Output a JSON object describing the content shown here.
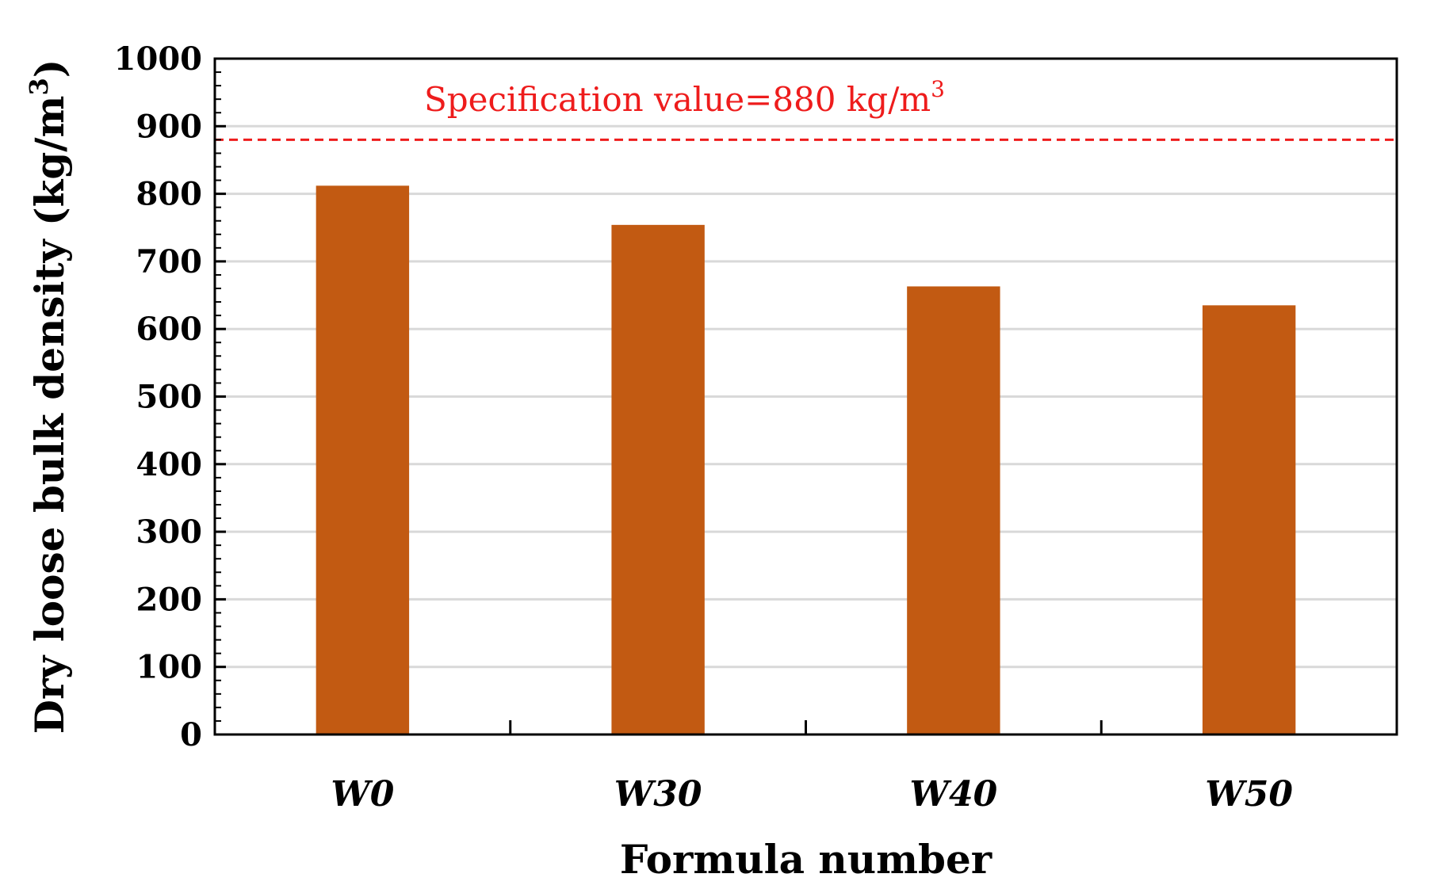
{
  "chart_data": {
    "type": "bar",
    "categories": [
      "W0",
      "W30",
      "W40",
      "W50"
    ],
    "series": [
      {
        "values": [
          812,
          754,
          663,
          635
        ]
      }
    ],
    "xlabel": "Formula number",
    "ylabel": {
      "main": "Dry loose bulk density (kg/m",
      "sup": "3",
      "tail": ")"
    },
    "ylim": [
      0,
      1000
    ],
    "yticks": [
      "0",
      "100",
      "200",
      "300",
      "400",
      "500",
      "600",
      "700",
      "800",
      "900",
      "1000"
    ],
    "grid": true,
    "bar_color": "#c25a12",
    "reference_line": {
      "value": 880,
      "label_main": "Specification value=880 kg/m",
      "label_sup": "3",
      "color": "#ee1c1c",
      "style": "dashed"
    }
  }
}
